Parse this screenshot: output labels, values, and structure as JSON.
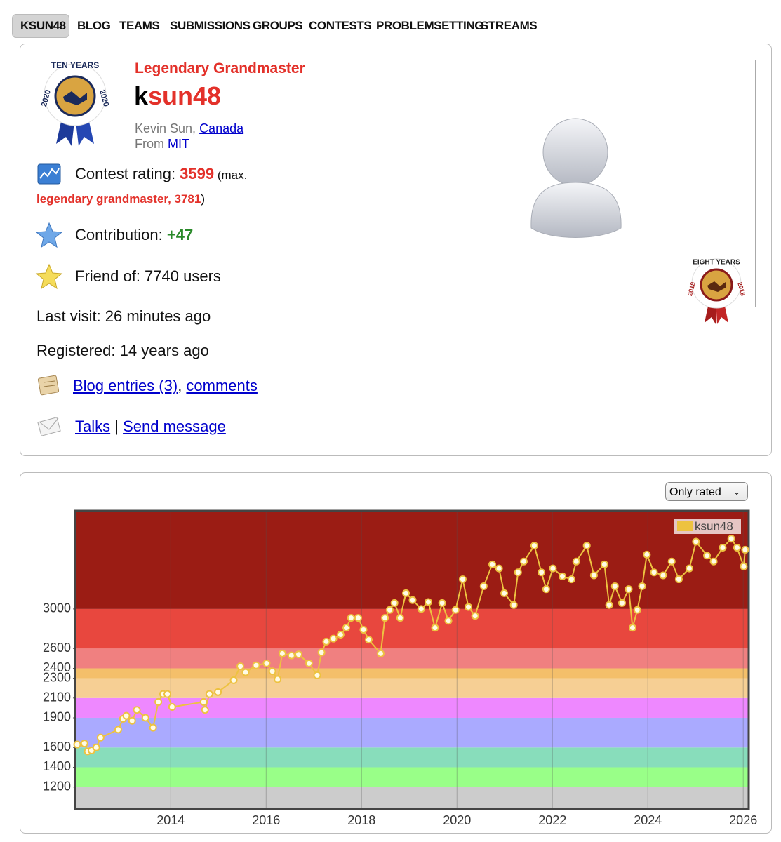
{
  "nav": [
    "KSUN48",
    "BLOG",
    "TEAMS",
    "SUBMISSIONS",
    "GROUPS",
    "CONTESTS",
    "PROBLEMSETTING",
    "STREAMS"
  ],
  "profile": {
    "rank": "Legendary Grandmaster",
    "handle": {
      "first": "k",
      "rest": "sun48"
    },
    "name": "Kevin Sun, ",
    "country": "Canada",
    "from_label": "From ",
    "organization": "MIT",
    "rating_label": "Contest rating: ",
    "rating": "3599",
    "max_open": " (max.",
    "max_rank": "legendary grandmaster, 3781",
    "max_close": ")",
    "contribution_label": "Contribution: ",
    "contribution": "+47",
    "friends": "Friend of: 7740 users",
    "last_visit": "Last visit: 26 minutes ago",
    "registered": "Registered: 14 years ago",
    "blog": "Blog entries (3)",
    "comma": ", ",
    "comments": "comments",
    "talks": "Talks",
    "separator": " | ",
    "send": "Send message",
    "badge_left": {
      "top": "TEN YEARS",
      "year": "2020"
    },
    "badge_right": {
      "top": "EIGHT YEARS",
      "year": "2018"
    }
  },
  "filter": "Only rated",
  "chart_data": {
    "type": "line",
    "x": [
      2012.04,
      2012.19,
      2012.26,
      2012.34,
      2012.44,
      2012.53,
      2012.9,
      2013.0,
      2013.07,
      2013.19,
      2013.29,
      2013.47,
      2013.63,
      2013.74,
      2013.84,
      2013.93,
      2014.03,
      2014.69,
      2014.72,
      2014.81,
      2014.99,
      2015.32,
      2015.46,
      2015.57,
      2015.79,
      2016.01,
      2016.13,
      2016.24,
      2016.34,
      2016.53,
      2016.68,
      2016.9,
      2017.07,
      2017.16,
      2017.26,
      2017.41,
      2017.56,
      2017.68,
      2017.78,
      2017.93,
      2018.04,
      2018.15,
      2018.4,
      2018.49,
      2018.59,
      2018.69,
      2018.81,
      2018.93,
      2019.07,
      2019.25,
      2019.4,
      2019.54,
      2019.69,
      2019.82,
      2019.97,
      2020.12,
      2020.24,
      2020.38,
      2020.56,
      2020.74,
      2020.88,
      2020.99,
      2021.19,
      2021.28,
      2021.4,
      2021.62,
      2021.77,
      2021.87,
      2022.01,
      2022.21,
      2022.4,
      2022.5,
      2022.72,
      2022.87,
      2023.09,
      2023.19,
      2023.31,
      2023.46,
      2023.6,
      2023.68,
      2023.78,
      2023.88,
      2023.98,
      2024.13,
      2024.32,
      2024.5,
      2024.65,
      2024.87,
      2025.01,
      2025.24,
      2025.38,
      2025.57,
      2025.75,
      2025.87,
      2026.01,
      2026.04
    ],
    "series": [
      {
        "name": "ksun48",
        "color": "#edc240",
        "values": [
          1630,
          1640,
          1560,
          1570,
          1600,
          1700,
          1780,
          1890,
          1920,
          1870,
          1980,
          1900,
          1800,
          2060,
          2140,
          2140,
          2010,
          2060,
          1980,
          2140,
          2160,
          2280,
          2420,
          2360,
          2430,
          2450,
          2370,
          2290,
          2550,
          2530,
          2540,
          2450,
          2330,
          2560,
          2670,
          2700,
          2740,
          2810,
          2910,
          2910,
          2790,
          2690,
          2550,
          2910,
          2990,
          3060,
          2910,
          3160,
          3090,
          3000,
          3070,
          2810,
          3060,
          2880,
          2990,
          3300,
          3020,
          2930,
          3230,
          3450,
          3410,
          3160,
          3040,
          3370,
          3480,
          3640,
          3370,
          3200,
          3410,
          3330,
          3300,
          3480,
          3640,
          3340,
          3450,
          3040,
          3230,
          3060,
          3200,
          2810,
          2990,
          3230,
          3550,
          3370,
          3340,
          3480,
          3300,
          3410,
          3680,
          3540,
          3480,
          3620,
          3710,
          3620,
          3430,
          3599
        ]
      }
    ],
    "xlim": [
      2012.01,
      2026.1
    ],
    "xticks": [
      2014,
      2016,
      2018,
      2020,
      2022,
      2024,
      2026
    ],
    "ylim": [
      985,
      3985
    ],
    "yticks": [
      1200,
      1400,
      1600,
      1900,
      2100,
      2300,
      2400,
      2600,
      3000
    ],
    "band_colors": [
      "#cccccc",
      "#99ff88",
      "#88ddbb",
      "#aaaaff",
      "#ee88ff",
      "#f6cf94",
      "#f4bf6a",
      "#f08080",
      "#e8473e",
      "#9b1c14"
    ],
    "grid": true,
    "legend": "top-right"
  }
}
